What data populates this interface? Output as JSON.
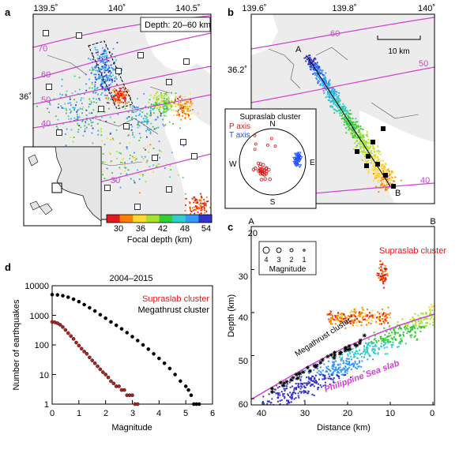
{
  "panels": {
    "a": {
      "letter": "a",
      "lon_ticks": [
        "139.5˚",
        "140˚",
        "140.5˚"
      ],
      "lat_ticks": [
        "36˚"
      ],
      "depth_label": "Depth: 20–60 km",
      "contours": [
        "70",
        "60",
        "50",
        "40",
        "30"
      ],
      "colorbar": {
        "ticks": [
          "30",
          "36",
          "42",
          "48",
          "54"
        ],
        "label": "Focal depth (km)",
        "colors": [
          "#e31a1c",
          "#ff7f00",
          "#ffd92f",
          "#a6e22e",
          "#33cc33",
          "#33cccc",
          "#3399ff",
          "#3333cc"
        ]
      }
    },
    "b": {
      "letter": "b",
      "lon_ticks": [
        "139.6˚",
        "139.8˚",
        "140˚"
      ],
      "lat_ticks": [
        "36.2˚"
      ],
      "contours": [
        "60",
        "50",
        "40"
      ],
      "scale_label": "10 km",
      "point_a": "A",
      "point_b": "B",
      "inset": {
        "title": "Supraslab cluster",
        "p_axis": "P axis",
        "t_axis": "T axis",
        "dirs": {
          "n": "N",
          "e": "E",
          "s": "S",
          "w": "W"
        }
      }
    },
    "c": {
      "letter": "c",
      "a_end": "A",
      "b_end": "B",
      "x_ticks": [
        "40",
        "30",
        "20",
        "10",
        "0"
      ],
      "y_ticks": [
        "20",
        "30",
        "40",
        "50",
        "60"
      ],
      "xlabel": "Distance (km)",
      "ylabel": "Depth (km)",
      "supraslab_label": "Supraslab cluster",
      "megathrust_label": "Megathrust cluster",
      "slab_label": "Philippine Sea slab",
      "mag_legend": {
        "values": [
          "4",
          "3",
          "2",
          "1"
        ],
        "title": "Magnitude"
      }
    }
  },
  "chart_data": {
    "type": "scatter",
    "title": "2004–2015",
    "panel_letter": "d",
    "xlabel": "Magnitude",
    "ylabel": "Number of earthquakes",
    "xlim": [
      0,
      6
    ],
    "ylim": [
      1,
      10000
    ],
    "yscale": "log",
    "x_ticks": [
      "0",
      "1",
      "2",
      "3",
      "4",
      "5",
      "6"
    ],
    "y_ticks": [
      "1",
      "10",
      "100",
      "1000",
      "10000"
    ],
    "series": [
      {
        "name": "Supraslab cluster",
        "color": "#b22222",
        "x": [
          0,
          0.1,
          0.2,
          0.3,
          0.4,
          0.5,
          0.6,
          0.7,
          0.8,
          0.9,
          1.0,
          1.1,
          1.2,
          1.3,
          1.4,
          1.5,
          1.6,
          1.7,
          1.8,
          1.9,
          2.0,
          2.1,
          2.2,
          2.3,
          2.4,
          2.5,
          2.6,
          2.7,
          2.8,
          2.9,
          3.0,
          3.1,
          3.2
        ],
        "y": [
          600,
          580,
          540,
          480,
          400,
          320,
          250,
          200,
          160,
          120,
          95,
          75,
          60,
          50,
          38,
          30,
          24,
          19,
          15,
          12,
          10,
          8,
          6,
          5,
          4,
          4,
          3,
          3,
          2,
          2,
          2,
          1,
          1
        ]
      },
      {
        "name": "Megathrust cluster",
        "color": "#000000",
        "x": [
          0,
          0.2,
          0.4,
          0.6,
          0.8,
          1.0,
          1.2,
          1.4,
          1.6,
          1.8,
          2.0,
          2.2,
          2.4,
          2.6,
          2.8,
          3.0,
          3.2,
          3.4,
          3.6,
          3.8,
          4.0,
          4.2,
          4.4,
          4.6,
          4.8,
          5.0,
          5.1,
          5.2,
          5.3,
          5.4,
          5.5
        ],
        "y": [
          5000,
          4900,
          4600,
          4100,
          3500,
          2900,
          2300,
          1800,
          1400,
          1050,
          800,
          600,
          460,
          350,
          260,
          190,
          140,
          100,
          72,
          50,
          35,
          24,
          16,
          10,
          6,
          4,
          3,
          2,
          1,
          1,
          1
        ]
      }
    ],
    "legend_position": "top-right"
  }
}
